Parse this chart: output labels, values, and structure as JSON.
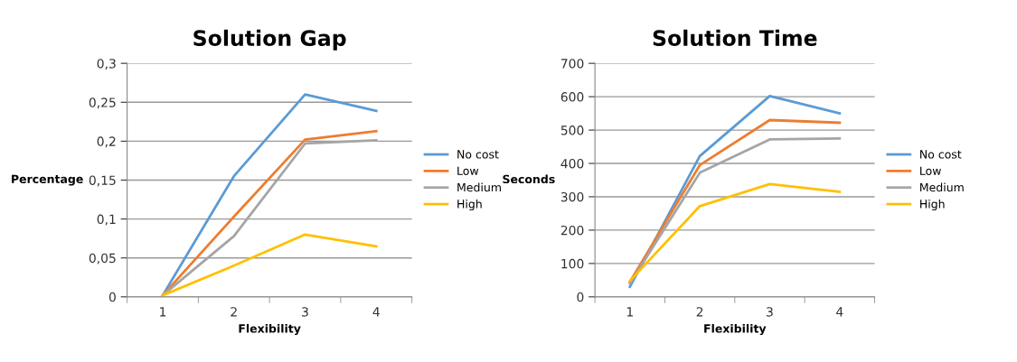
{
  "chart_data": [
    {
      "type": "line",
      "title": "Solution Gap",
      "xlabel": "Flexibility",
      "ylabel": "Percentage",
      "categories": [
        "1",
        "2",
        "3",
        "4"
      ],
      "series": [
        {
          "name": "No cost",
          "color": "#5b9bd5",
          "values": [
            0.002,
            0.155,
            0.26,
            0.239
          ]
        },
        {
          "name": "Low",
          "color": "#ed7d31",
          "values": [
            0.002,
            0.103,
            0.202,
            0.213
          ]
        },
        {
          "name": "Medium",
          "color": "#a5a5a5",
          "values": [
            0.002,
            0.078,
            0.197,
            0.201
          ]
        },
        {
          "name": "High",
          "color": "#ffc000",
          "values": [
            0.002,
            0.04,
            0.08,
            0.065
          ]
        }
      ],
      "ylim": [
        0,
        0.3
      ],
      "yticks": [
        0,
        {
          "value": 0.05,
          "label": "0,05"
        },
        {
          "value": 0.1,
          "label": "0,1"
        },
        {
          "value": 0.15,
          "label": "0,15"
        },
        {
          "value": 0.2,
          "label": "0,2"
        },
        {
          "value": 0.25,
          "label": "0,25"
        },
        {
          "value": 0.3,
          "label": "0,3"
        }
      ],
      "grid": "y",
      "legend": "right"
    },
    {
      "type": "line",
      "title": "Solution Time",
      "xlabel": "Flexibility",
      "ylabel": "Seconds",
      "categories": [
        "1",
        "2",
        "3",
        "4"
      ],
      "series": [
        {
          "name": "No cost",
          "color": "#5b9bd5",
          "values": [
            30,
            422,
            602,
            550
          ]
        },
        {
          "name": "Low",
          "color": "#ed7d31",
          "values": [
            45,
            395,
            530,
            522
          ]
        },
        {
          "name": "Medium",
          "color": "#a5a5a5",
          "values": [
            40,
            372,
            472,
            475
          ]
        },
        {
          "name": "High",
          "color": "#ffc000",
          "values": [
            48,
            272,
            338,
            315
          ]
        }
      ],
      "ylim": [
        0,
        700
      ],
      "yticks": [
        0,
        100,
        200,
        300,
        400,
        500,
        600,
        700
      ],
      "grid": "y",
      "legend": "right"
    }
  ]
}
